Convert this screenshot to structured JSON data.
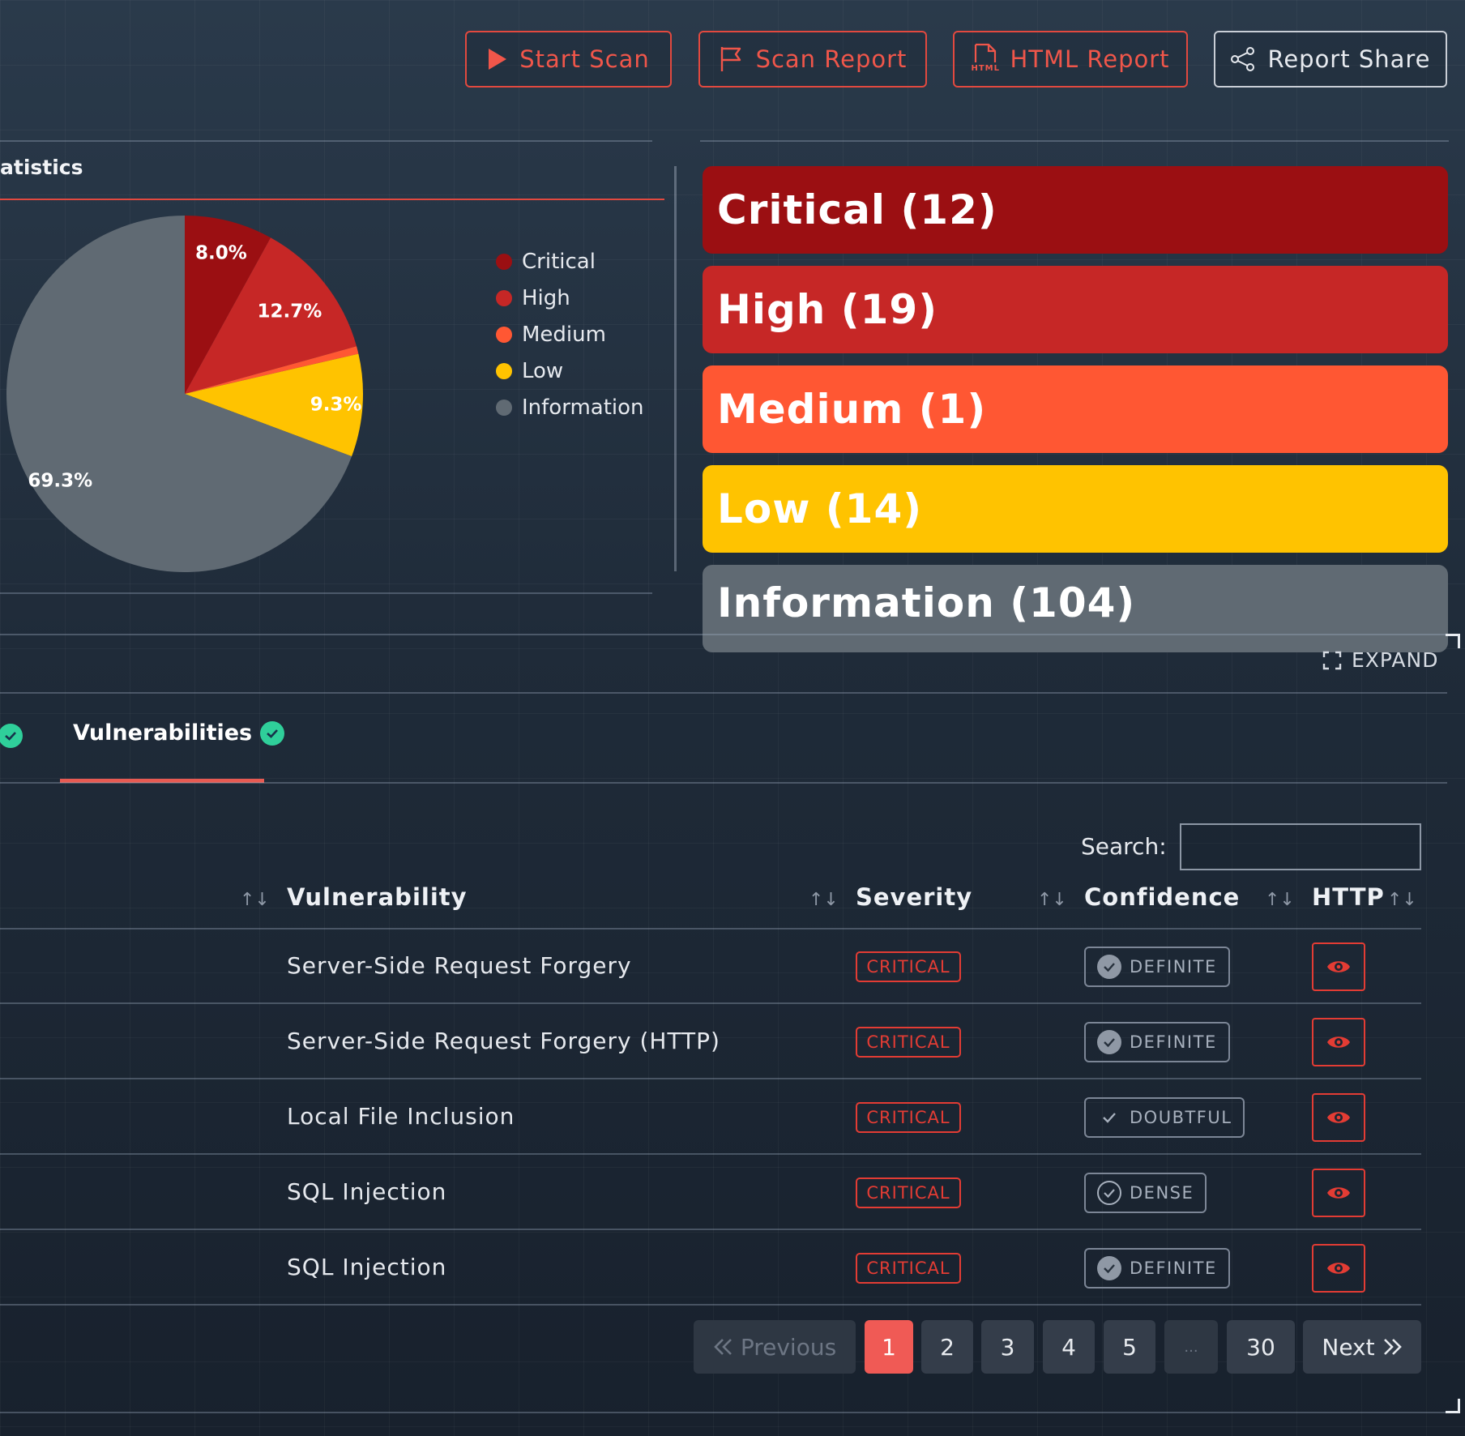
{
  "toolbar": {
    "start_scan": "Start Scan",
    "scan_report": "Scan Report",
    "html_report": "HTML Report",
    "html_icon_text": "HTML",
    "report_share": "Report Share"
  },
  "statistics": {
    "title": "atistics",
    "legend": [
      {
        "label": "Critical",
        "color": "#9b0f12"
      },
      {
        "label": "High",
        "color": "#c62726"
      },
      {
        "label": "Medium",
        "color": "#ff5733"
      },
      {
        "label": "Low",
        "color": "#ffc300"
      },
      {
        "label": "Information",
        "color": "#606a73"
      }
    ]
  },
  "chart_data": {
    "type": "pie",
    "slices": [
      {
        "label": "Critical",
        "value": 8.0,
        "display": "8.0%",
        "color": "#9b0f12"
      },
      {
        "label": "High",
        "value": 12.7,
        "display": "12.7%",
        "color": "#c62726"
      },
      {
        "label": "Medium",
        "value": 0.7,
        "display": "",
        "color": "#ff5733"
      },
      {
        "label": "Low",
        "value": 9.3,
        "display": "9.3%",
        "color": "#ffc300"
      },
      {
        "label": "Information",
        "value": 69.3,
        "display": "69.3%",
        "color": "#606a73"
      }
    ],
    "legend_position": "right"
  },
  "severity_bars": [
    {
      "label": "Critical (12)",
      "color": "#9b0f12"
    },
    {
      "label": "High (19)",
      "color": "#c62726"
    },
    {
      "label": "Medium (1)",
      "color": "#ff5733"
    },
    {
      "label": "Low (14)",
      "color": "#ffc300"
    },
    {
      "label": "Information (104)",
      "color": "#606a73"
    }
  ],
  "panel": {
    "expand_label": "EXPAND",
    "tab_label": "Vulnerabilities",
    "search_label": "Search:",
    "search_value": ""
  },
  "table": {
    "headers": {
      "vulnerability": "Vulnerability",
      "severity": "Severity",
      "confidence": "Confidence",
      "http": "HTTP"
    },
    "sort_glyph": "↑↓",
    "rows": [
      {
        "vulnerability": "Server-Side Request Forgery",
        "severity": "CRITICAL",
        "confidence": "DEFINITE"
      },
      {
        "vulnerability": "Server-Side Request Forgery (HTTP)",
        "severity": "CRITICAL",
        "confidence": "DEFINITE"
      },
      {
        "vulnerability": "Local File Inclusion",
        "severity": "CRITICAL",
        "confidence": "DOUBTFUL"
      },
      {
        "vulnerability": "SQL Injection",
        "severity": "CRITICAL",
        "confidence": "DENSE"
      },
      {
        "vulnerability": "SQL Injection",
        "severity": "CRITICAL",
        "confidence": "DEFINITE"
      }
    ]
  },
  "pagination": {
    "previous": "Previous",
    "pages": [
      "1",
      "2",
      "3",
      "4",
      "5"
    ],
    "ellipsis": "...",
    "last": "30",
    "next": "Next",
    "current": "1"
  },
  "colors": {
    "accent": "#e2493f",
    "critical_badge": "#e33c34",
    "tab_check": "#2fcf9a"
  }
}
